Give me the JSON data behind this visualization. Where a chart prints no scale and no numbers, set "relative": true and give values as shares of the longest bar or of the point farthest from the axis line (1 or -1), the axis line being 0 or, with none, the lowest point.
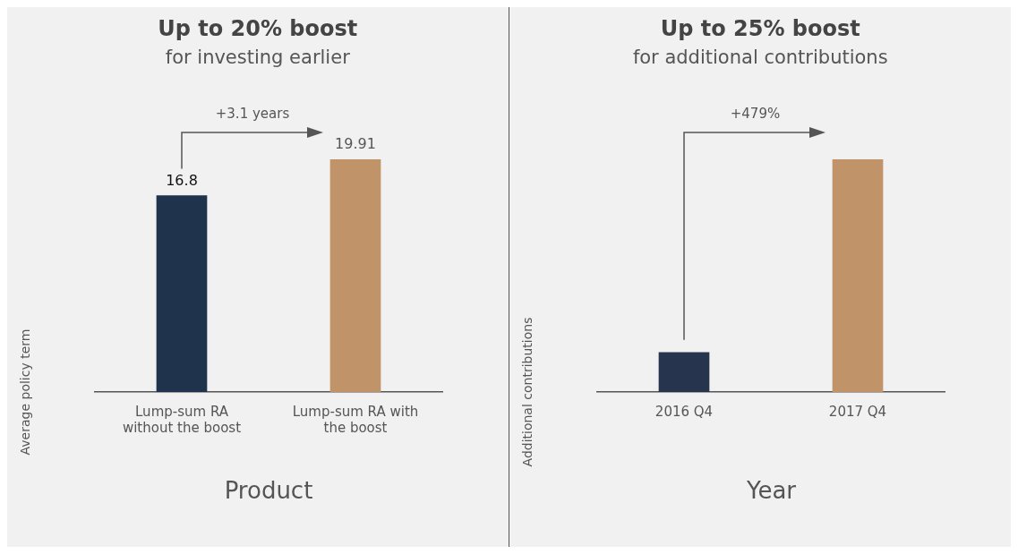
{
  "chart_data": [
    {
      "type": "bar",
      "title": "Up to 20% boost",
      "subtitle": "for investing earlier",
      "xlabel": "Product",
      "ylabel": "Average policy term",
      "categories": [
        "Lump-sum RA without the boost",
        "Lump-sum RA with the boost"
      ],
      "values": [
        16.8,
        19.91
      ],
      "colors": [
        "#1f334d",
        "#c09369"
      ],
      "data_labels": true,
      "tick_labels": "x",
      "annotations": [
        "+3.1 years"
      ],
      "grid": false,
      "legend": false
    },
    {
      "type": "bar",
      "title": "Up to 25% boost",
      "subtitle": "for additional contributions",
      "xlabel": "Year",
      "ylabel": "Additional contributions",
      "categories": [
        "2016 Q4",
        "2017 Q4"
      ],
      "values": [
        0.17,
        1
      ],
      "colors": [
        "#26344d",
        "#c09369"
      ],
      "relative": true,
      "annotations": [
        "+479%"
      ],
      "grid": false,
      "legend": false
    }
  ]
}
